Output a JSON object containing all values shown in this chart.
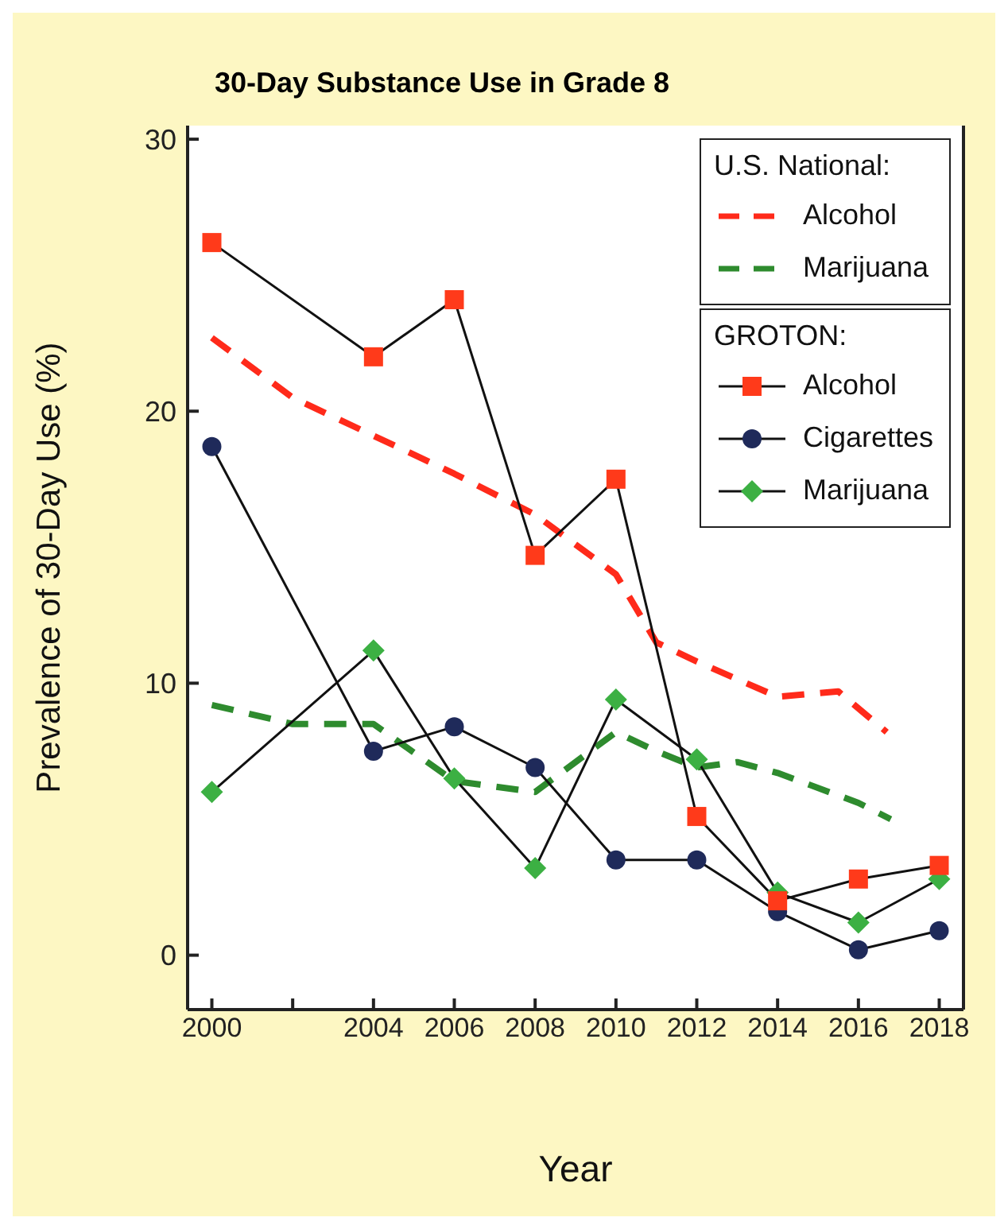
{
  "chart_data": {
    "type": "line",
    "title": "30-Day Substance Use in Grade 8",
    "xlabel": "Year",
    "ylabel": "Prevalence of 30-Day Use (%)",
    "annotations": [
      "U.S. National:",
      "GROTON:"
    ],
    "xlim": [
      1999.4,
      2018.6
    ],
    "xticks": [
      2000,
      {
        "value": 2002,
        "label": null
      },
      2004,
      2006,
      2008,
      2010,
      2012,
      2014,
      2016,
      2018
    ],
    "ylim": [
      -2,
      30.5
    ],
    "yticks": [
      0,
      10,
      20,
      30
    ],
    "legend": "top right",
    "series": [
      {
        "name": "Alcohol",
        "color": "#ff2a1a",
        "line_style": "dashed",
        "marker": "none",
        "x": [
          2000,
          2002,
          2004,
          2006,
          2008,
          2010,
          2011,
          2012,
          2014,
          2015.5,
          2016.7
        ],
        "values": [
          22.7,
          20.5,
          19.1,
          17.7,
          16.2,
          14.0,
          11.5,
          10.8,
          9.5,
          9.7,
          8.2
        ]
      },
      {
        "name": "Marijuana",
        "color": "#2e8b2e",
        "line_style": "dashed",
        "marker": "none",
        "x": [
          2000,
          2002,
          2004,
          2006,
          2008,
          2010,
          2011,
          2012,
          2013,
          2014,
          2016,
          2016.8
        ],
        "values": [
          9.2,
          8.5,
          8.5,
          6.4,
          6.0,
          8.2,
          7.5,
          6.9,
          7.1,
          6.7,
          5.6,
          5.0
        ]
      },
      {
        "name": "Alcohol",
        "color": "#ff3a1a",
        "line_style": "solid",
        "marker": "square",
        "x": [
          2000,
          2004,
          2006,
          2008,
          2010,
          2012,
          2014,
          2016,
          2018
        ],
        "values": [
          26.2,
          22.0,
          24.1,
          14.7,
          17.5,
          5.1,
          2.0,
          2.8,
          3.3
        ]
      },
      {
        "name": "Cigarettes",
        "color": "#1f2a5a",
        "line_style": "solid",
        "marker": "circle",
        "x": [
          2000,
          2004,
          2006,
          2008,
          2010,
          2012,
          2014,
          2016,
          2018
        ],
        "values": [
          18.7,
          7.5,
          8.4,
          6.9,
          3.5,
          3.5,
          1.6,
          0.2,
          0.9
        ]
      },
      {
        "name": "Marijuana",
        "color": "#3cb043",
        "line_style": "solid",
        "marker": "diamond",
        "x": [
          2000,
          2004,
          2006,
          2008,
          2010,
          2012,
          2014,
          2016,
          2018
        ],
        "values": [
          6.0,
          11.2,
          6.5,
          3.2,
          9.4,
          7.2,
          2.3,
          1.2,
          2.8
        ]
      }
    ]
  }
}
